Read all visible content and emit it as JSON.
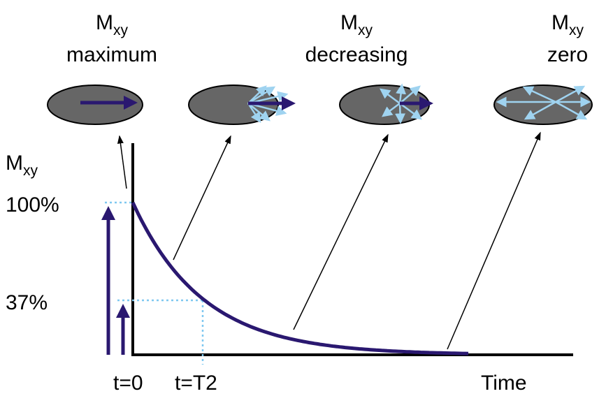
{
  "states": [
    {
      "symbol": "M",
      "subscript": "xy",
      "label": "maximum"
    },
    {
      "symbol": "M",
      "subscript": "xy",
      "label": "decreasing"
    },
    {
      "symbol": "M",
      "subscript": "xy",
      "label": "zero"
    }
  ],
  "axis": {
    "y_symbol": "M",
    "y_subscript": "xy",
    "y_labels": [
      "100%",
      "37%"
    ],
    "x_labels": [
      "t=0",
      "t=T2"
    ],
    "x_title": "Time"
  }
}
